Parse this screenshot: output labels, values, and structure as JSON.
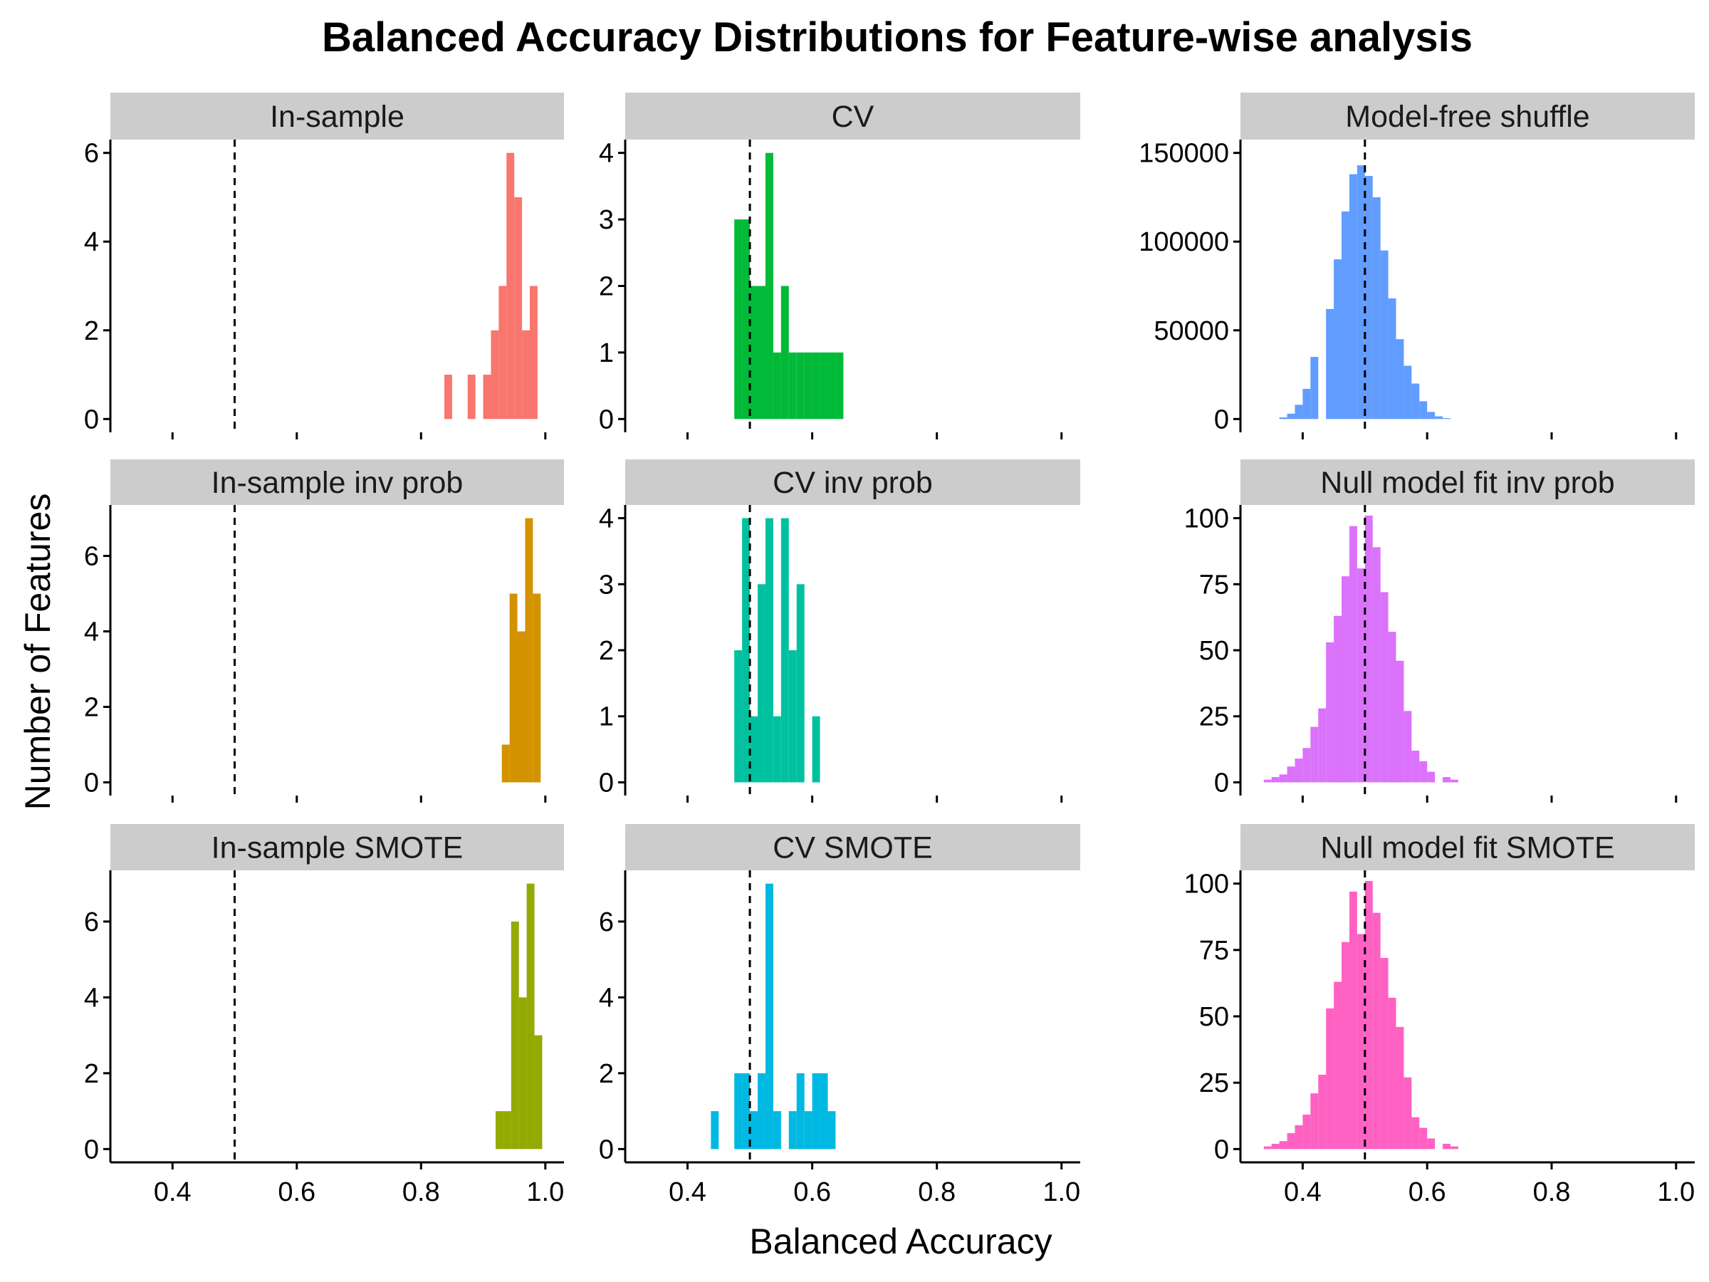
{
  "chart_data": {
    "type": "histogram-facets",
    "title": "Balanced Accuracy Distributions for Feature-wise analysis",
    "xlabel": "Balanced Accuracy",
    "ylabel": "Number of Features",
    "xlim": [
      0.3,
      1.03
    ],
    "x_ticks": [
      0.4,
      0.6,
      0.8,
      1.0
    ],
    "x_tick_labels": [
      "0.4",
      "0.6",
      "0.8",
      "1.0"
    ],
    "reference_line": {
      "x": 0.5,
      "style": "dashed",
      "color": "#000000"
    },
    "bin_width": 0.0125,
    "grid": false,
    "legend": "none",
    "strip_color": "#cccccc",
    "panels": [
      {
        "name": "In-sample",
        "color": "#f8766d",
        "ylim": [
          -0.3,
          6.3
        ],
        "y_ticks": [
          0,
          2,
          4,
          6
        ],
        "y_tick_labels": [
          "0",
          "2",
          "4",
          "6"
        ],
        "bins": [
          {
            "x0": 0.8375,
            "x1": 0.85,
            "count": 1
          },
          {
            "x0": 0.875,
            "x1": 0.8875,
            "count": 1
          },
          {
            "x0": 0.9,
            "x1": 0.9125,
            "count": 1
          },
          {
            "x0": 0.9125,
            "x1": 0.925,
            "count": 2
          },
          {
            "x0": 0.925,
            "x1": 0.9375,
            "count": 3
          },
          {
            "x0": 0.9375,
            "x1": 0.95,
            "count": 6
          },
          {
            "x0": 0.95,
            "x1": 0.9625,
            "count": 5
          },
          {
            "x0": 0.9625,
            "x1": 0.975,
            "count": 2
          },
          {
            "x0": 0.975,
            "x1": 0.9875,
            "count": 3
          }
        ]
      },
      {
        "name": "CV",
        "color": "#00ba38",
        "ylim": [
          -0.2,
          4.2
        ],
        "y_ticks": [
          0,
          1,
          2,
          3,
          4
        ],
        "y_tick_labels": [
          "0",
          "1",
          "2",
          "3",
          "4"
        ],
        "bins": [
          {
            "x0": 0.475,
            "x1": 0.4875,
            "count": 3
          },
          {
            "x0": 0.4875,
            "x1": 0.5,
            "count": 3
          },
          {
            "x0": 0.5,
            "x1": 0.5125,
            "count": 2
          },
          {
            "x0": 0.5125,
            "x1": 0.525,
            "count": 2
          },
          {
            "x0": 0.525,
            "x1": 0.5375,
            "count": 4
          },
          {
            "x0": 0.5375,
            "x1": 0.55,
            "count": 1
          },
          {
            "x0": 0.55,
            "x1": 0.5625,
            "count": 2
          },
          {
            "x0": 0.5625,
            "x1": 0.575,
            "count": 1
          },
          {
            "x0": 0.575,
            "x1": 0.5875,
            "count": 1
          },
          {
            "x0": 0.5875,
            "x1": 0.6,
            "count": 1
          },
          {
            "x0": 0.6,
            "x1": 0.6125,
            "count": 1
          },
          {
            "x0": 0.6125,
            "x1": 0.625,
            "count": 1
          },
          {
            "x0": 0.625,
            "x1": 0.6375,
            "count": 1
          },
          {
            "x0": 0.6375,
            "x1": 0.65,
            "count": 1
          }
        ]
      },
      {
        "name": "Model-free shuffle",
        "color": "#619cff",
        "ylim": [
          -7500,
          157500
        ],
        "y_ticks": [
          0,
          50000,
          100000,
          150000
        ],
        "y_tick_labels": [
          "0",
          "50000",
          "100000",
          "150000"
        ],
        "bins": [
          {
            "x0": 0.3625,
            "x1": 0.375,
            "count": 900
          },
          {
            "x0": 0.375,
            "x1": 0.3875,
            "count": 3000
          },
          {
            "x0": 0.3875,
            "x1": 0.4,
            "count": 8000
          },
          {
            "x0": 0.4,
            "x1": 0.4125,
            "count": 17000
          },
          {
            "x0": 0.4125,
            "x1": 0.425,
            "count": 35000
          },
          {
            "x0": 0.425,
            "x1": 0.4375,
            "count": 0
          },
          {
            "x0": 0.4375,
            "x1": 0.45,
            "count": 62000
          },
          {
            "x0": 0.45,
            "x1": 0.4625,
            "count": 90000
          },
          {
            "x0": 0.4625,
            "x1": 0.475,
            "count": 117000
          },
          {
            "x0": 0.475,
            "x1": 0.4875,
            "count": 138000
          },
          {
            "x0": 0.4875,
            "x1": 0.5,
            "count": 143000
          },
          {
            "x0": 0.5,
            "x1": 0.5125,
            "count": 137000
          },
          {
            "x0": 0.5125,
            "x1": 0.525,
            "count": 125000
          },
          {
            "x0": 0.525,
            "x1": 0.5375,
            "count": 95000
          },
          {
            "x0": 0.5375,
            "x1": 0.55,
            "count": 68000
          },
          {
            "x0": 0.55,
            "x1": 0.5625,
            "count": 45000
          },
          {
            "x0": 0.5625,
            "x1": 0.575,
            "count": 30000
          },
          {
            "x0": 0.575,
            "x1": 0.5875,
            "count": 20000
          },
          {
            "x0": 0.5875,
            "x1": 0.6,
            "count": 10000
          },
          {
            "x0": 0.6,
            "x1": 0.6125,
            "count": 4000
          },
          {
            "x0": 0.6125,
            "x1": 0.625,
            "count": 1500
          },
          {
            "x0": 0.625,
            "x1": 0.6375,
            "count": 500
          }
        ]
      },
      {
        "name": "In-sample inv prob",
        "color": "#d39200",
        "ylim": [
          -0.35,
          7.35
        ],
        "y_ticks": [
          0,
          2,
          4,
          6
        ],
        "y_tick_labels": [
          "0",
          "2",
          "4",
          "6"
        ],
        "bins": [
          {
            "x0": 0.93,
            "x1": 0.9425,
            "count": 1
          },
          {
            "x0": 0.9425,
            "x1": 0.955,
            "count": 5
          },
          {
            "x0": 0.955,
            "x1": 0.9675,
            "count": 4
          },
          {
            "x0": 0.9675,
            "x1": 0.98,
            "count": 7
          },
          {
            "x0": 0.98,
            "x1": 0.9925,
            "count": 5
          }
        ]
      },
      {
        "name": "CV inv prob",
        "color": "#00c19f",
        "ylim": [
          -0.2,
          4.2
        ],
        "y_ticks": [
          0,
          1,
          2,
          3,
          4
        ],
        "y_tick_labels": [
          "0",
          "1",
          "2",
          "3",
          "4"
        ],
        "bins": [
          {
            "x0": 0.475,
            "x1": 0.4875,
            "count": 2
          },
          {
            "x0": 0.4875,
            "x1": 0.5,
            "count": 4
          },
          {
            "x0": 0.5,
            "x1": 0.5125,
            "count": 1
          },
          {
            "x0": 0.5125,
            "x1": 0.525,
            "count": 3
          },
          {
            "x0": 0.525,
            "x1": 0.5375,
            "count": 4
          },
          {
            "x0": 0.5375,
            "x1": 0.55,
            "count": 1
          },
          {
            "x0": 0.55,
            "x1": 0.5625,
            "count": 4
          },
          {
            "x0": 0.5625,
            "x1": 0.575,
            "count": 2
          },
          {
            "x0": 0.575,
            "x1": 0.5875,
            "count": 3
          },
          {
            "x0": 0.5875,
            "x1": 0.6,
            "count": 0
          },
          {
            "x0": 0.6,
            "x1": 0.6125,
            "count": 1
          }
        ]
      },
      {
        "name": "Null model fit inv prob",
        "color": "#db72fb",
        "ylim": [
          -5,
          105
        ],
        "y_ticks": [
          0,
          25,
          50,
          75,
          100
        ],
        "y_tick_labels": [
          "0",
          "25",
          "50",
          "75",
          "100"
        ],
        "bins": [
          {
            "x0": 0.3375,
            "x1": 0.35,
            "count": 1
          },
          {
            "x0": 0.35,
            "x1": 0.3625,
            "count": 2
          },
          {
            "x0": 0.3625,
            "x1": 0.375,
            "count": 3
          },
          {
            "x0": 0.375,
            "x1": 0.3875,
            "count": 6
          },
          {
            "x0": 0.3875,
            "x1": 0.4,
            "count": 9
          },
          {
            "x0": 0.4,
            "x1": 0.4125,
            "count": 13
          },
          {
            "x0": 0.4125,
            "x1": 0.425,
            "count": 21
          },
          {
            "x0": 0.425,
            "x1": 0.4375,
            "count": 28
          },
          {
            "x0": 0.4375,
            "x1": 0.45,
            "count": 53
          },
          {
            "x0": 0.45,
            "x1": 0.4625,
            "count": 63
          },
          {
            "x0": 0.4625,
            "x1": 0.475,
            "count": 78
          },
          {
            "x0": 0.475,
            "x1": 0.4875,
            "count": 97
          },
          {
            "x0": 0.4875,
            "x1": 0.5,
            "count": 81
          },
          {
            "x0": 0.5,
            "x1": 0.5125,
            "count": 101
          },
          {
            "x0": 0.5125,
            "x1": 0.525,
            "count": 89
          },
          {
            "x0": 0.525,
            "x1": 0.5375,
            "count": 72
          },
          {
            "x0": 0.5375,
            "x1": 0.55,
            "count": 57
          },
          {
            "x0": 0.55,
            "x1": 0.5625,
            "count": 46
          },
          {
            "x0": 0.5625,
            "x1": 0.575,
            "count": 27
          },
          {
            "x0": 0.575,
            "x1": 0.5875,
            "count": 12
          },
          {
            "x0": 0.5875,
            "x1": 0.6,
            "count": 8
          },
          {
            "x0": 0.6,
            "x1": 0.6125,
            "count": 4
          },
          {
            "x0": 0.6125,
            "x1": 0.625,
            "count": 0
          },
          {
            "x0": 0.625,
            "x1": 0.6375,
            "count": 2
          },
          {
            "x0": 0.6375,
            "x1": 0.65,
            "count": 1
          }
        ]
      },
      {
        "name": "In-sample SMOTE",
        "color": "#93aa00",
        "ylim": [
          -0.35,
          7.35
        ],
        "y_ticks": [
          0,
          2,
          4,
          6
        ],
        "y_tick_labels": [
          "0",
          "2",
          "4",
          "6"
        ],
        "bins": [
          {
            "x0": 0.92,
            "x1": 0.9325,
            "count": 1
          },
          {
            "x0": 0.9325,
            "x1": 0.945,
            "count": 1
          },
          {
            "x0": 0.945,
            "x1": 0.9575,
            "count": 6
          },
          {
            "x0": 0.9575,
            "x1": 0.97,
            "count": 4
          },
          {
            "x0": 0.97,
            "x1": 0.9825,
            "count": 7
          },
          {
            "x0": 0.9825,
            "x1": 0.995,
            "count": 3
          }
        ]
      },
      {
        "name": "CV SMOTE",
        "color": "#00b9e3",
        "ylim": [
          -0.35,
          7.35
        ],
        "y_ticks": [
          0,
          2,
          4,
          6
        ],
        "y_tick_labels": [
          "0",
          "2",
          "4",
          "6"
        ],
        "bins": [
          {
            "x0": 0.4375,
            "x1": 0.45,
            "count": 1
          },
          {
            "x0": 0.475,
            "x1": 0.4875,
            "count": 2
          },
          {
            "x0": 0.4875,
            "x1": 0.5,
            "count": 2
          },
          {
            "x0": 0.5,
            "x1": 0.5125,
            "count": 1
          },
          {
            "x0": 0.5125,
            "x1": 0.525,
            "count": 2
          },
          {
            "x0": 0.525,
            "x1": 0.5375,
            "count": 7
          },
          {
            "x0": 0.5375,
            "x1": 0.55,
            "count": 1
          },
          {
            "x0": 0.5625,
            "x1": 0.575,
            "count": 1
          },
          {
            "x0": 0.575,
            "x1": 0.5875,
            "count": 2
          },
          {
            "x0": 0.5875,
            "x1": 0.6,
            "count": 1
          },
          {
            "x0": 0.6,
            "x1": 0.6125,
            "count": 2
          },
          {
            "x0": 0.6125,
            "x1": 0.625,
            "count": 2
          },
          {
            "x0": 0.625,
            "x1": 0.6375,
            "count": 1
          }
        ]
      },
      {
        "name": "Null model fit SMOTE",
        "color": "#ff61c3",
        "ylim": [
          -5,
          105
        ],
        "y_ticks": [
          0,
          25,
          50,
          75,
          100
        ],
        "y_tick_labels": [
          "0",
          "25",
          "50",
          "75",
          "100"
        ],
        "bins": [
          {
            "x0": 0.3375,
            "x1": 0.35,
            "count": 1
          },
          {
            "x0": 0.35,
            "x1": 0.3625,
            "count": 2
          },
          {
            "x0": 0.3625,
            "x1": 0.375,
            "count": 3
          },
          {
            "x0": 0.375,
            "x1": 0.3875,
            "count": 6
          },
          {
            "x0": 0.3875,
            "x1": 0.4,
            "count": 9
          },
          {
            "x0": 0.4,
            "x1": 0.4125,
            "count": 13
          },
          {
            "x0": 0.4125,
            "x1": 0.425,
            "count": 21
          },
          {
            "x0": 0.425,
            "x1": 0.4375,
            "count": 28
          },
          {
            "x0": 0.4375,
            "x1": 0.45,
            "count": 53
          },
          {
            "x0": 0.45,
            "x1": 0.4625,
            "count": 63
          },
          {
            "x0": 0.4625,
            "x1": 0.475,
            "count": 78
          },
          {
            "x0": 0.475,
            "x1": 0.4875,
            "count": 97
          },
          {
            "x0": 0.4875,
            "x1": 0.5,
            "count": 81
          },
          {
            "x0": 0.5,
            "x1": 0.5125,
            "count": 101
          },
          {
            "x0": 0.5125,
            "x1": 0.525,
            "count": 89
          },
          {
            "x0": 0.525,
            "x1": 0.5375,
            "count": 72
          },
          {
            "x0": 0.5375,
            "x1": 0.55,
            "count": 57
          },
          {
            "x0": 0.55,
            "x1": 0.5625,
            "count": 46
          },
          {
            "x0": 0.5625,
            "x1": 0.575,
            "count": 27
          },
          {
            "x0": 0.575,
            "x1": 0.5875,
            "count": 12
          },
          {
            "x0": 0.5875,
            "x1": 0.6,
            "count": 8
          },
          {
            "x0": 0.6,
            "x1": 0.6125,
            "count": 4
          },
          {
            "x0": 0.6125,
            "x1": 0.625,
            "count": 0
          },
          {
            "x0": 0.625,
            "x1": 0.6375,
            "count": 2
          },
          {
            "x0": 0.6375,
            "x1": 0.65,
            "count": 1
          }
        ]
      }
    ]
  }
}
